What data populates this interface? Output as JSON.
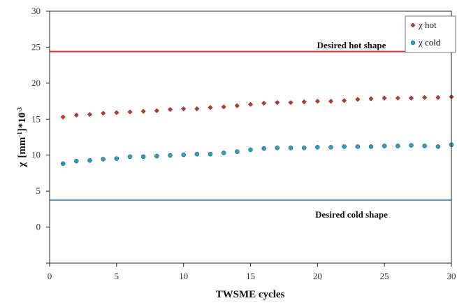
{
  "chart_data": {
    "type": "scatter",
    "xlabel": "TWSME cycles",
    "ylabel_main": "χ",
    "ylabel_unit": "[mm",
    "ylabel_unit_sup1": "-1",
    "ylabel_unit_mid": "]*10",
    "ylabel_unit_sup2": "-3",
    "xlim": [
      0,
      30
    ],
    "ylim": [
      -10,
      30
    ],
    "x_ticks": [
      "0",
      "5",
      "10",
      "15",
      "20",
      "25",
      "30"
    ],
    "y_ticks": [
      "",
      "0",
      "5",
      "10",
      "15",
      "20",
      "25",
      "30"
    ],
    "grid": false,
    "legend_position": "top-right",
    "series": [
      {
        "name": "χ hot",
        "marker": "diamond",
        "color": "#c0392b",
        "x": [
          1,
          2,
          3,
          4,
          5,
          6,
          7,
          8,
          9,
          10,
          11,
          12,
          13,
          14,
          15,
          16,
          17,
          18,
          19,
          20,
          21,
          22,
          23,
          24,
          25,
          26,
          27,
          28,
          29,
          30
        ],
        "y": [
          13.2,
          13.5,
          13.6,
          13.8,
          13.9,
          14.0,
          14.1,
          14.2,
          14.4,
          14.5,
          14.5,
          14.7,
          14.8,
          15.0,
          15.2,
          15.4,
          15.5,
          15.5,
          15.6,
          15.7,
          15.7,
          15.8,
          16.0,
          16.1,
          16.2,
          16.2,
          16.2,
          16.3,
          16.3,
          16.4
        ]
      },
      {
        "name": "χ cold",
        "marker": "circle",
        "color": "#2e9fc4",
        "x": [
          1,
          2,
          3,
          4,
          5,
          6,
          7,
          8,
          9,
          10,
          11,
          12,
          13,
          14,
          15,
          16,
          17,
          18,
          19,
          20,
          21,
          22,
          23,
          24,
          25,
          26,
          27,
          28,
          29,
          30
        ],
        "y": [
          5.8,
          6.2,
          6.3,
          6.5,
          6.6,
          6.9,
          6.9,
          7.0,
          7.1,
          7.2,
          7.3,
          7.3,
          7.5,
          7.7,
          8.0,
          8.2,
          8.3,
          8.3,
          8.3,
          8.4,
          8.4,
          8.5,
          8.5,
          8.5,
          8.6,
          8.6,
          8.7,
          8.6,
          8.5,
          8.8
        ]
      }
    ],
    "reference_lines": [
      {
        "label": "Desired hot shape",
        "y": 23.6,
        "color": "#e03030"
      },
      {
        "label": "Desired cold shape",
        "y": 0,
        "color": "#5b8fd6"
      }
    ]
  }
}
